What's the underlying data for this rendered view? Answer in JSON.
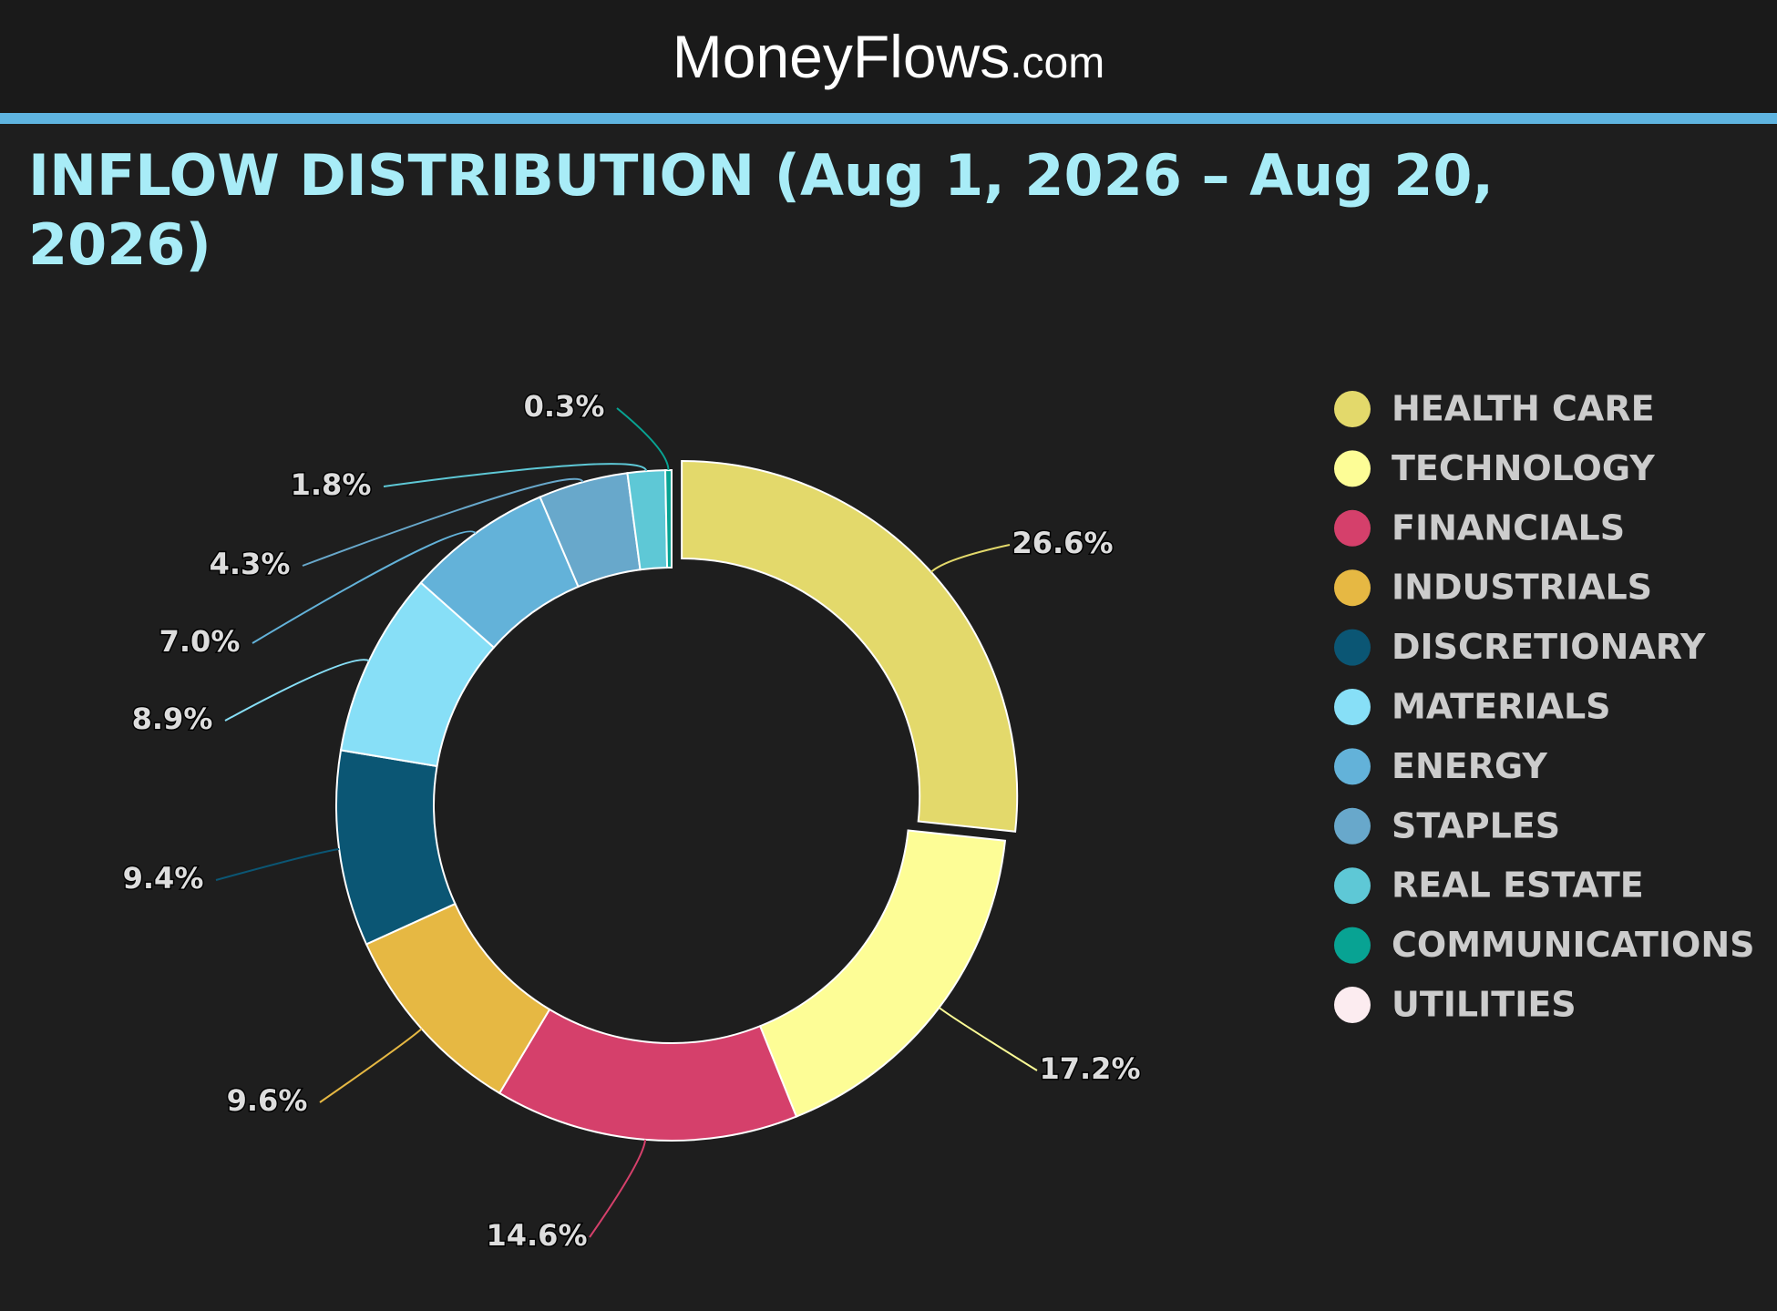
{
  "header": {
    "logo": "MoneyFlows",
    "domain": ".com"
  },
  "chart_data": {
    "type": "donut",
    "title": "INFLOW DISTRIBUTION (Aug 1, 2026 – Aug 20, 2026)",
    "categories": [
      "HEALTH CARE",
      "TECHNOLOGY",
      "FINANCIALS",
      "INDUSTRIALS",
      "DISCRETIONARY",
      "MATERIALS",
      "ENERGY",
      "STAPLES",
      "REAL ESTATE",
      "COMMUNICATIONS",
      "UTILITIES"
    ],
    "values": [
      26.6,
      17.2,
      14.6,
      9.6,
      9.4,
      8.9,
      7.0,
      4.3,
      1.8,
      0.3,
      null
    ],
    "value_labels": [
      "26.6%",
      "17.2%",
      "14.6%",
      "9.6%",
      "9.4%",
      "8.9%",
      "7.0%",
      "4.3%",
      "1.8%",
      "0.3%",
      null
    ],
    "colors": [
      "#e3d96b",
      "#fdfd96",
      "#d5406b",
      "#e6b843",
      "#0b5674",
      "#87dff7",
      "#63b2d9",
      "#68a8cb",
      "#5ec8d6",
      "#08a393",
      "#fcecf0"
    ],
    "legend": "right"
  }
}
